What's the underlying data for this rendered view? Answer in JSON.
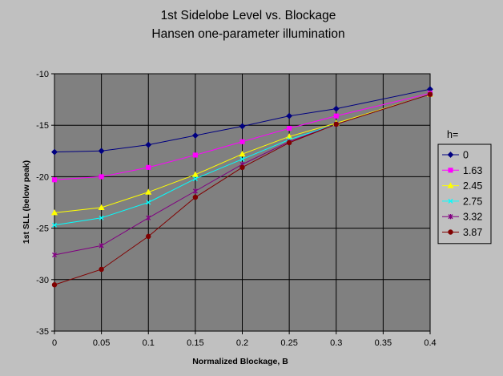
{
  "chart_data": {
    "type": "line",
    "title": "1st Sidelobe Level vs. Blockage",
    "subtitle": "Hansen one-parameter illumination",
    "xlabel": "Normalized Blockage, B",
    "ylabel": "1st SLL (below peak)",
    "xlim": [
      0,
      0.4
    ],
    "ylim": [
      -35,
      -10
    ],
    "x_ticks": [
      "0",
      "0.05",
      "0.1",
      "0.15",
      "0.2",
      "0.25",
      "0.3",
      "0.35",
      "0.4"
    ],
    "y_ticks": [
      "-10",
      "-15",
      "-20",
      "-25",
      "-30",
      "-35"
    ],
    "grid": true,
    "legend_title": "h=",
    "legend_position": "right",
    "x": [
      0,
      0.05,
      0.1,
      0.15,
      0.2,
      0.25,
      0.3,
      0.4
    ],
    "series": [
      {
        "name": "0",
        "color": "#000080",
        "marker": "diamond",
        "values": [
          -17.6,
          -17.5,
          -16.9,
          -16.0,
          -15.1,
          -14.1,
          -13.4,
          -11.5
        ]
      },
      {
        "name": "1.63",
        "color": "#ff00ff",
        "marker": "square",
        "values": [
          -20.3,
          -20.0,
          -19.1,
          -17.9,
          -16.6,
          -15.3,
          -14.1,
          -11.9
        ]
      },
      {
        "name": "2.45",
        "color": "#ffff00",
        "marker": "triangle",
        "values": [
          -23.5,
          -23.0,
          -21.5,
          -19.8,
          -17.8,
          -16.1,
          -14.8,
          -12.0
        ]
      },
      {
        "name": "2.75",
        "color": "#00ffff",
        "marker": "x",
        "values": [
          -24.7,
          -24.0,
          -22.5,
          -20.2,
          -18.3,
          -16.4,
          -14.9,
          -12.0
        ]
      },
      {
        "name": "3.32",
        "color": "#800080",
        "marker": "star",
        "values": [
          -27.6,
          -26.7,
          -24.0,
          -21.4,
          -18.8,
          -16.6,
          -14.9,
          -12.0
        ]
      },
      {
        "name": "3.87",
        "color": "#800000",
        "marker": "circle",
        "values": [
          -30.5,
          -29.0,
          -25.8,
          -22.0,
          -19.1,
          -16.7,
          -14.9,
          -12.0
        ]
      }
    ]
  }
}
